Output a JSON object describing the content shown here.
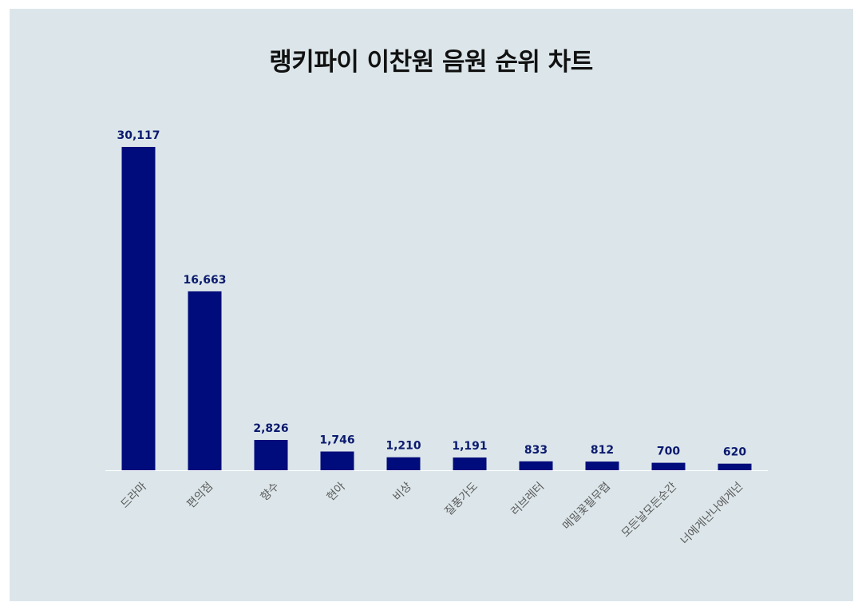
{
  "chart_data": {
    "type": "bar",
    "title": "랭키파이 이찬원 음원 순위 차트",
    "categories": [
      "드라마",
      "편의점",
      "향수",
      "현아",
      "비상",
      "질풍가도",
      "러브레터",
      "메밀꽃필무렵",
      "모든날모든순간",
      "너에게난나에게넌"
    ],
    "values": [
      30117,
      16663,
      2826,
      1746,
      1210,
      1191,
      833,
      812,
      700,
      620
    ],
    "value_labels": [
      "30,117",
      "16,663",
      "2,826",
      "1,746",
      "1,210",
      "1,191",
      "833",
      "812",
      "700",
      "620"
    ],
    "xlabel": "",
    "ylabel": "",
    "ylim": [
      0,
      30117
    ],
    "grid": false,
    "bar_color": "#000c7b",
    "background_color": "#dce6ea"
  }
}
